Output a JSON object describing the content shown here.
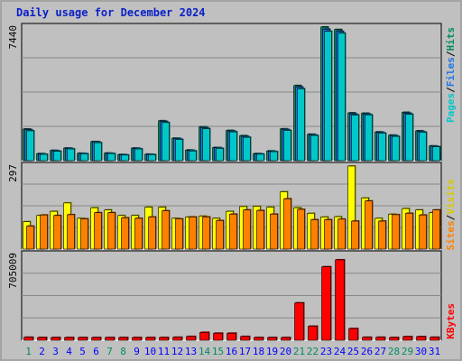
{
  "title": "Daily usage for December 2024",
  "colors": {
    "pages": "#00c8c8",
    "files": "#1e74e8",
    "hits": "#008c64",
    "visits": "#ffff00",
    "sites": "#ff8000",
    "kbytes": "#ff0000",
    "weekend_day": "#008c64",
    "weekday": "#0000ff",
    "panel_bg": "#c0c0c0"
  },
  "chart_data": [
    {
      "type": "bar",
      "panel": "top",
      "ymax_label": "7440",
      "ymax": 7440,
      "legend": [
        "Pages",
        "/",
        "Files",
        "/",
        "Hits"
      ],
      "categories": [
        "1",
        "2",
        "3",
        "4",
        "5",
        "6",
        "7",
        "8",
        "9",
        "10",
        "11",
        "12",
        "13",
        "14",
        "15",
        "16",
        "17",
        "18",
        "19",
        "20",
        "21",
        "22",
        "23",
        "24",
        "25",
        "26",
        "27",
        "28",
        "29",
        "30",
        "31"
      ],
      "series": [
        {
          "name": "Hits",
          "values": [
            1760,
            390,
            570,
            700,
            410,
            1060,
            420,
            340,
            700,
            360,
            2220,
            1250,
            590,
            1880,
            730,
            1680,
            1390,
            390,
            540,
            1770,
            4180,
            1470,
            7440,
            7300,
            2660,
            2640,
            1600,
            1420,
            2690,
            1660,
            820
          ]
        },
        {
          "name": "Files",
          "values": [
            1720,
            370,
            550,
            680,
            400,
            1050,
            410,
            330,
            680,
            350,
            2180,
            1230,
            570,
            1840,
            720,
            1650,
            1350,
            380,
            520,
            1730,
            4100,
            1440,
            7320,
            7200,
            2600,
            2600,
            1570,
            1390,
            2640,
            1620,
            800
          ]
        },
        {
          "name": "Pages",
          "values": [
            1660,
            350,
            520,
            650,
            380,
            1000,
            390,
            310,
            650,
            330,
            2120,
            1180,
            540,
            1780,
            680,
            1600,
            1300,
            360,
            500,
            1680,
            4000,
            1400,
            7200,
            7100,
            2540,
            2550,
            1530,
            1350,
            2580,
            1580,
            770
          ]
        }
      ]
    },
    {
      "type": "bar",
      "panel": "middle",
      "ymax_label": "297",
      "ymax": 297,
      "legend": [
        "Sites",
        "/",
        "Visits"
      ],
      "categories": [
        "1",
        "2",
        "3",
        "4",
        "5",
        "6",
        "7",
        "8",
        "9",
        "10",
        "11",
        "12",
        "13",
        "14",
        "15",
        "16",
        "17",
        "18",
        "19",
        "20",
        "21",
        "22",
        "23",
        "24",
        "25",
        "26",
        "27",
        "28",
        "29",
        "30",
        "31"
      ],
      "series": [
        {
          "name": "Visits",
          "values": [
            98,
            120,
            135,
            165,
            110,
            148,
            140,
            120,
            120,
            150,
            150,
            110,
            115,
            118,
            110,
            135,
            152,
            153,
            150,
            205,
            148,
            128,
            115,
            116,
            297,
            183,
            110,
            125,
            145,
            140,
            130
          ]
        },
        {
          "name": "Sites",
          "values": [
            82,
            122,
            120,
            123,
            108,
            130,
            130,
            112,
            110,
            115,
            137,
            108,
            115,
            115,
            102,
            125,
            140,
            138,
            125,
            180,
            142,
            105,
            105,
            107,
            100,
            172,
            100,
            123,
            128,
            122,
            140
          ]
        }
      ]
    },
    {
      "type": "bar",
      "panel": "bottom",
      "ymax_label": "705009",
      "ymax": 705009,
      "legend": [
        "KBytes"
      ],
      "categories": [
        "1",
        "2",
        "3",
        "4",
        "5",
        "6",
        "7",
        "8",
        "9",
        "10",
        "11",
        "12",
        "13",
        "14",
        "15",
        "16",
        "17",
        "18",
        "19",
        "20",
        "21",
        "22",
        "23",
        "24",
        "25",
        "26",
        "27",
        "28",
        "29",
        "30",
        "31"
      ],
      "series": [
        {
          "name": "KBytes",
          "values": [
            25000,
            14000,
            16000,
            23000,
            18000,
            21000,
            16000,
            10000,
            21000,
            16000,
            23000,
            25000,
            32000,
            67000,
            60000,
            60000,
            32000,
            18000,
            11000,
            18000,
            320000,
            120000,
            630000,
            690000,
            100000,
            25000,
            25000,
            23000,
            31000,
            31000,
            25000
          ]
        }
      ]
    }
  ],
  "x_labels": [
    "1",
    "2",
    "3",
    "4",
    "5",
    "6",
    "7",
    "8",
    "9",
    "10",
    "11",
    "12",
    "13",
    "14",
    "15",
    "16",
    "17",
    "18",
    "19",
    "20",
    "21",
    "22",
    "23",
    "24",
    "25",
    "26",
    "27",
    "28",
    "29",
    "30",
    "31"
  ],
  "weekend_days": [
    "1",
    "7",
    "8",
    "14",
    "15",
    "21",
    "22",
    "28",
    "29"
  ]
}
